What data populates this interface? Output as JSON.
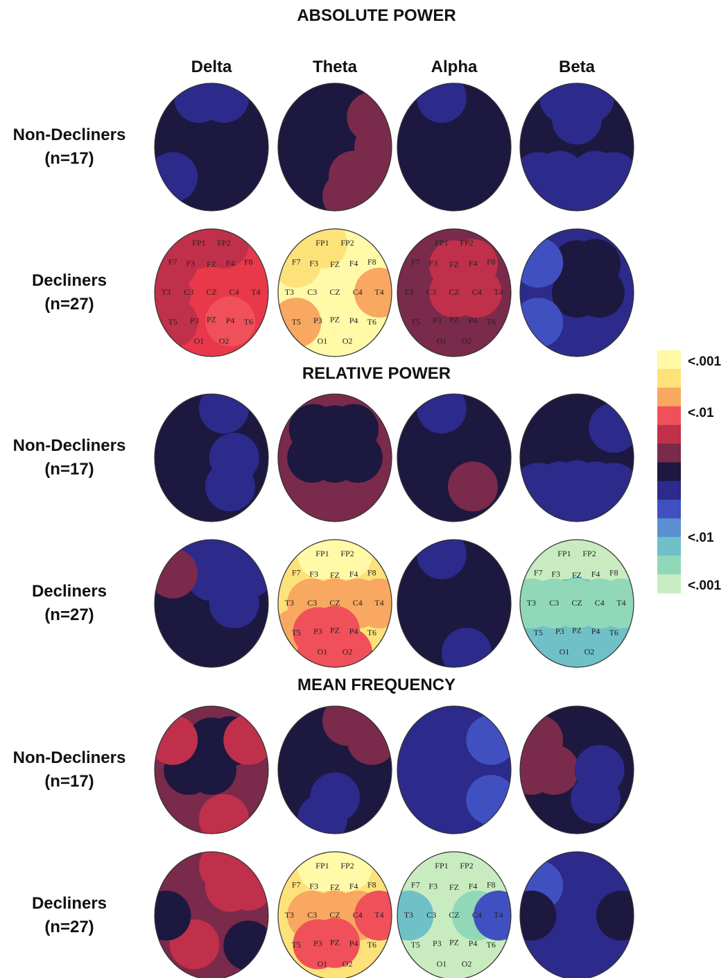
{
  "columns": [
    "Delta",
    "Theta",
    "Alpha",
    "Beta"
  ],
  "electrodes": [
    "FP1",
    "FP2",
    "F7",
    "F3",
    "FZ",
    "F4",
    "F8",
    "T3",
    "C3",
    "CZ",
    "C4",
    "T4",
    "T5",
    "P3",
    "PZ",
    "P4",
    "T6",
    "O1",
    "O2"
  ],
  "colorbar": {
    "colors": [
      "#fff9a8",
      "#fde27a",
      "#f8a860",
      "#f0505a",
      "#c0304a",
      "#7a2a4a",
      "#1c1840",
      "#2c2a8a",
      "#4050c0",
      "#5a90d0",
      "#70c0c8",
      "#90d8b8",
      "#c8ecc0"
    ],
    "labels": [
      "<.001",
      "<.01",
      "<.01",
      "<.001"
    ]
  },
  "sections": [
    {
      "title": "ABSOLUTE POWER",
      "rows": [
        {
          "group": "Non-Decliners",
          "n": "(n=17)",
          "maps": [
            {
              "base": "#1c1840",
              "labels": false,
              "spots": [
                {
                  "at": [
                    "FP1",
                    "FP2",
                    "T5"
                  ],
                  "color": "#2c2a8a"
                }
              ]
            },
            {
              "base": "#1c1840",
              "labels": false,
              "spots": [
                {
                  "at": [
                    "F8",
                    "T4",
                    "T6",
                    "O2",
                    "P4"
                  ],
                  "color": "#7a2a4a"
                }
              ]
            },
            {
              "base": "#1c1840",
              "labels": false,
              "spots": [
                {
                  "at": [
                    "FP1"
                  ],
                  "color": "#2c2a8a"
                }
              ]
            },
            {
              "base": "#1c1840",
              "labels": false,
              "spots": [
                {
                  "at": [
                    "FP1",
                    "FP2",
                    "FZ",
                    "T5",
                    "P3",
                    "P4",
                    "T6",
                    "O1",
                    "O2"
                  ],
                  "color": "#2c2a8a"
                }
              ]
            }
          ]
        },
        {
          "group": "Decliners",
          "n": "(n=27)",
          "maps": [
            {
              "base": "#e8384a",
              "labels": true,
              "spots": [
                {
                  "at": [
                    "FP1",
                    "FP2",
                    "F7",
                    "T3",
                    "T5"
                  ],
                  "color": "#c0304a"
                },
                {
                  "at": [
                    "P4"
                  ],
                  "color": "#f0505a"
                }
              ]
            },
            {
              "base": "#fff9a8",
              "labels": true,
              "spots": [
                {
                  "at": [
                    "F7",
                    "FP1"
                  ],
                  "color": "#fde27a"
                },
                {
                  "at": [
                    "T5",
                    "T4"
                  ],
                  "color": "#f8a860"
                }
              ]
            },
            {
              "base": "#7a2a4a",
              "labels": true,
              "spots": [
                {
                  "at": [
                    "FZ",
                    "CZ",
                    "C4",
                    "F4"
                  ],
                  "color": "#c0304a"
                }
              ]
            },
            {
              "base": "#2c2a8a",
              "labels": false,
              "spots": [
                {
                  "at": [
                    "CZ",
                    "C4",
                    "FZ",
                    "F4"
                  ],
                  "color": "#1c1840"
                },
                {
                  "at": [
                    "F7",
                    "T5"
                  ],
                  "color": "#4050c0"
                }
              ]
            }
          ]
        }
      ]
    },
    {
      "title": "RELATIVE POWER",
      "rows": [
        {
          "group": "Non-Decliners",
          "n": "(n=17)",
          "maps": [
            {
              "base": "#1c1840",
              "labels": false,
              "spots": [
                {
                  "at": [
                    "FP2",
                    "C4",
                    "P4"
                  ],
                  "color": "#2c2a8a"
                }
              ]
            },
            {
              "base": "#7a2a4a",
              "labels": false,
              "spots": [
                {
                  "at": [
                    "C3",
                    "CZ",
                    "C4",
                    "FZ",
                    "F3",
                    "F4"
                  ],
                  "color": "#1c1840"
                }
              ]
            },
            {
              "base": "#1c1840",
              "labels": false,
              "spots": [
                {
                  "at": [
                    "FP1"
                  ],
                  "color": "#2c2a8a"
                },
                {
                  "at": [
                    "P4"
                  ],
                  "color": "#7a2a4a"
                }
              ]
            },
            {
              "base": "#1c1840",
              "labels": false,
              "spots": [
                {
                  "at": [
                    "T5",
                    "P3",
                    "PZ",
                    "P4",
                    "T6",
                    "O1",
                    "O2",
                    "F8"
                  ],
                  "color": "#2c2a8a"
                }
              ]
            }
          ]
        },
        {
          "group": "Decliners",
          "n": "(n=27)",
          "maps": [
            {
              "base": "#1c1840",
              "labels": false,
              "spots": [
                {
                  "at": [
                    "FP1",
                    "FP2",
                    "FZ",
                    "F4",
                    "F8",
                    "C4"
                  ],
                  "color": "#2c2a8a"
                },
                {
                  "at": [
                    "F7"
                  ],
                  "color": "#7a2a4a"
                }
              ]
            },
            {
              "base": "#fde27a",
              "labels": true,
              "spots": [
                {
                  "at": [
                    "FP1",
                    "FP2"
                  ],
                  "color": "#fff9a8"
                },
                {
                  "at": [
                    "C3",
                    "CZ",
                    "C4",
                    "T4",
                    "T5"
                  ],
                  "color": "#f8a860"
                },
                {
                  "at": [
                    "P3",
                    "PZ",
                    "O1",
                    "O2"
                  ],
                  "color": "#f0505a"
                }
              ]
            },
            {
              "base": "#1c1840",
              "labels": false,
              "spots": [
                {
                  "at": [
                    "FP1",
                    "O2"
                  ],
                  "color": "#2c2a8a"
                }
              ]
            },
            {
              "base": "#70c0c8",
              "labels": true,
              "spots": [
                {
                  "at": [
                    "F7",
                    "F8",
                    "FP1",
                    "FP2"
                  ],
                  "color": "#c8ecc0"
                },
                {
                  "at": [
                    "T3",
                    "C3",
                    "CZ",
                    "C4",
                    "T4"
                  ],
                  "color": "#90d8b8"
                }
              ]
            }
          ]
        }
      ]
    },
    {
      "title": "MEAN FREQUENCY",
      "rows": [
        {
          "group": "Non-Decliners",
          "n": "(n=17)",
          "maps": [
            {
              "base": "#7a2a4a",
              "labels": false,
              "spots": [
                {
                  "at": [
                    "CZ",
                    "FZ",
                    "F4",
                    "C3"
                  ],
                  "color": "#1c1840"
                },
                {
                  "at": [
                    "F7",
                    "F8",
                    "O2"
                  ],
                  "color": "#c0304a"
                }
              ]
            },
            {
              "base": "#1c1840",
              "labels": false,
              "spots": [
                {
                  "at": [
                    "FP2",
                    "F8"
                  ],
                  "color": "#7a2a4a"
                },
                {
                  "at": [
                    "PZ",
                    "O1"
                  ],
                  "color": "#2c2a8a"
                }
              ]
            },
            {
              "base": "#2c2a8a",
              "labels": false,
              "spots": [
                {
                  "at": [
                    "F8",
                    "T6"
                  ],
                  "color": "#4050c0"
                }
              ]
            },
            {
              "base": "#1c1840",
              "labels": false,
              "spots": [
                {
                  "at": [
                    "F7",
                    "T3",
                    "C3"
                  ],
                  "color": "#7a2a4a"
                },
                {
                  "at": [
                    "C4",
                    "P4"
                  ],
                  "color": "#2c2a8a"
                }
              ]
            }
          ]
        },
        {
          "group": "Decliners",
          "n": "(n=27)",
          "maps": [
            {
              "base": "#7a2a4a",
              "labels": false,
              "spots": [
                {
                  "at": [
                    "F4",
                    "F8",
                    "FP2",
                    "P3"
                  ],
                  "color": "#c0304a"
                },
                {
                  "at": [
                    "T3",
                    "T6"
                  ],
                  "color": "#1c1840"
                }
              ]
            },
            {
              "base": "#fde27a",
              "labels": true,
              "spots": [
                {
                  "at": [
                    "FP1",
                    "FP2"
                  ],
                  "color": "#fff9a8"
                },
                {
                  "at": [
                    "C3",
                    "CZ",
                    "C4"
                  ],
                  "color": "#f8a860"
                },
                {
                  "at": [
                    "T4",
                    "PZ",
                    "P3"
                  ],
                  "color": "#f0505a"
                }
              ]
            },
            {
              "base": "#c8ecc0",
              "labels": true,
              "spots": [
                {
                  "at": [
                    "T3"
                  ],
                  "color": "#70c0c8"
                },
                {
                  "at": [
                    "C4"
                  ],
                  "color": "#90d8b8"
                },
                {
                  "at": [
                    "T4"
                  ],
                  "color": "#4050c0"
                }
              ]
            },
            {
              "base": "#2c2a8a",
              "labels": false,
              "spots": [
                {
                  "at": [
                    "F7"
                  ],
                  "color": "#4050c0"
                },
                {
                  "at": [
                    "T3",
                    "T4"
                  ],
                  "color": "#1c1840"
                }
              ]
            }
          ]
        }
      ]
    }
  ]
}
